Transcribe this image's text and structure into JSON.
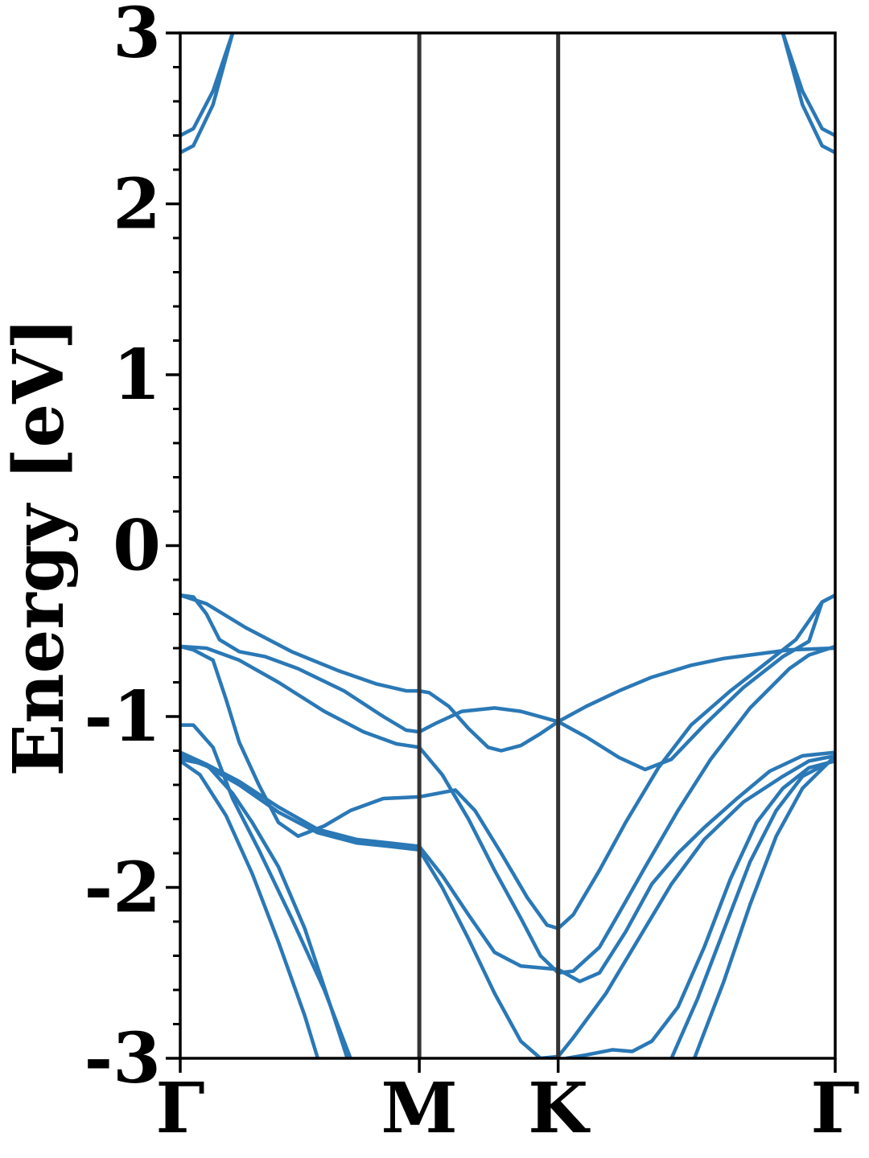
{
  "chart_data": {
    "type": "line",
    "title": "",
    "xlabel": "",
    "ylabel": "Energy [eV]",
    "ylim": [
      -3,
      3
    ],
    "xlim": [
      0,
      1
    ],
    "yticks": [
      "-3",
      "-2",
      "-1",
      "0",
      "1",
      "2",
      "3"
    ],
    "ytick_values": [
      -3,
      -2,
      -1,
      0,
      1,
      2,
      3
    ],
    "minor_ytick_step": 0.2,
    "kpoints": [
      {
        "label": "Γ",
        "x": 0.0
      },
      {
        "label": "M",
        "x": 0.365
      },
      {
        "label": "K",
        "x": 0.577
      },
      {
        "label": "Γ",
        "x": 1.0
      }
    ],
    "grid": false,
    "legend": "none",
    "line_color": "#2a78b6",
    "divider_color": "#333333",
    "series": [
      {
        "values": [
          [
            0.0,
            2.3
          ],
          [
            0.02,
            2.34
          ],
          [
            0.05,
            2.58
          ],
          [
            0.08,
            3.0
          ]
        ]
      },
      {
        "values": [
          [
            0.0,
            2.4
          ],
          [
            0.02,
            2.44
          ],
          [
            0.05,
            2.66
          ],
          [
            0.08,
            3.0
          ]
        ]
      },
      {
        "values": [
          [
            0.92,
            3.0
          ],
          [
            0.95,
            2.58
          ],
          [
            0.98,
            2.34
          ],
          [
            1.0,
            2.3
          ]
        ]
      },
      {
        "values": [
          [
            0.92,
            3.0
          ],
          [
            0.95,
            2.66
          ],
          [
            0.98,
            2.44
          ],
          [
            1.0,
            2.4
          ]
        ]
      },
      {
        "values": [
          [
            0.0,
            -0.29
          ],
          [
            0.04,
            -0.34
          ],
          [
            0.1,
            -0.48
          ],
          [
            0.17,
            -0.62
          ],
          [
            0.24,
            -0.73
          ],
          [
            0.3,
            -0.81
          ],
          [
            0.345,
            -0.85
          ],
          [
            0.365,
            -0.85
          ],
          [
            0.38,
            -0.86
          ],
          [
            0.41,
            -0.94
          ],
          [
            0.44,
            -1.07
          ],
          [
            0.47,
            -1.18
          ],
          [
            0.49,
            -1.2
          ],
          [
            0.52,
            -1.17
          ],
          [
            0.55,
            -1.1
          ],
          [
            0.577,
            -1.03
          ],
          [
            0.62,
            -0.94
          ],
          [
            0.67,
            -0.85
          ],
          [
            0.72,
            -0.77
          ],
          [
            0.78,
            -0.7
          ],
          [
            0.83,
            -0.66
          ],
          [
            0.87,
            -0.64
          ],
          [
            0.93,
            -0.61
          ],
          [
            1.0,
            -0.6
          ]
        ]
      },
      {
        "values": [
          [
            0.0,
            -0.29
          ],
          [
            0.02,
            -0.3
          ],
          [
            0.04,
            -0.4
          ],
          [
            0.06,
            -0.55
          ],
          [
            0.09,
            -0.62
          ],
          [
            0.13,
            -0.65
          ],
          [
            0.18,
            -0.72
          ],
          [
            0.25,
            -0.85
          ],
          [
            0.31,
            -1.0
          ],
          [
            0.345,
            -1.08
          ],
          [
            0.365,
            -1.09
          ],
          [
            0.39,
            -1.04
          ],
          [
            0.43,
            -0.97
          ],
          [
            0.48,
            -0.95
          ],
          [
            0.52,
            -0.97
          ],
          [
            0.577,
            -1.03
          ],
          [
            0.62,
            -1.12
          ],
          [
            0.67,
            -1.24
          ],
          [
            0.71,
            -1.31
          ],
          [
            0.75,
            -1.25
          ],
          [
            0.8,
            -1.05
          ],
          [
            0.86,
            -0.83
          ],
          [
            0.92,
            -0.65
          ],
          [
            0.96,
            -0.56
          ],
          [
            0.98,
            -0.33
          ],
          [
            1.0,
            -0.29
          ]
        ]
      },
      {
        "values": [
          [
            0.0,
            -0.59
          ],
          [
            0.04,
            -0.6
          ],
          [
            0.09,
            -0.67
          ],
          [
            0.15,
            -0.8
          ],
          [
            0.22,
            -0.97
          ],
          [
            0.28,
            -1.09
          ],
          [
            0.33,
            -1.16
          ],
          [
            0.365,
            -1.18
          ],
          [
            0.4,
            -1.34
          ],
          [
            0.44,
            -1.6
          ],
          [
            0.48,
            -1.9
          ],
          [
            0.52,
            -2.18
          ],
          [
            0.55,
            -2.4
          ],
          [
            0.577,
            -2.5
          ],
          [
            0.6,
            -2.49
          ],
          [
            0.64,
            -2.35
          ],
          [
            0.67,
            -2.15
          ],
          [
            0.71,
            -1.88
          ],
          [
            0.76,
            -1.55
          ],
          [
            0.81,
            -1.25
          ],
          [
            0.87,
            -0.95
          ],
          [
            0.93,
            -0.72
          ],
          [
            0.96,
            -0.64
          ],
          [
            1.0,
            -0.59
          ]
        ]
      },
      {
        "values": [
          [
            0.0,
            -0.59
          ],
          [
            0.02,
            -0.61
          ],
          [
            0.05,
            -0.67
          ],
          [
            0.07,
            -0.9
          ],
          [
            0.09,
            -1.15
          ],
          [
            0.12,
            -1.4
          ],
          [
            0.15,
            -1.62
          ],
          [
            0.18,
            -1.7
          ],
          [
            0.22,
            -1.64
          ],
          [
            0.26,
            -1.55
          ],
          [
            0.31,
            -1.48
          ],
          [
            0.365,
            -1.47
          ],
          [
            0.42,
            -1.43
          ],
          [
            0.45,
            -1.55
          ],
          [
            0.49,
            -1.8
          ],
          [
            0.53,
            -2.06
          ],
          [
            0.56,
            -2.22
          ],
          [
            0.577,
            -2.24
          ],
          [
            0.6,
            -2.16
          ],
          [
            0.64,
            -1.9
          ],
          [
            0.68,
            -1.62
          ],
          [
            0.73,
            -1.3
          ],
          [
            0.78,
            -1.05
          ],
          [
            0.84,
            -0.85
          ],
          [
            0.89,
            -0.7
          ],
          [
            0.94,
            -0.55
          ],
          [
            0.98,
            -0.33
          ],
          [
            1.0,
            -0.29
          ]
        ]
      },
      {
        "values": [
          [
            0.0,
            -1.05
          ],
          [
            0.02,
            -1.05
          ],
          [
            0.05,
            -1.18
          ],
          [
            0.08,
            -1.48
          ],
          [
            0.12,
            -1.78
          ],
          [
            0.17,
            -2.18
          ],
          [
            0.22,
            -2.6
          ],
          [
            0.26,
            -3.0
          ]
        ]
      },
      {
        "values": [
          [
            0.0,
            -1.21
          ],
          [
            0.04,
            -1.28
          ],
          [
            0.09,
            -1.38
          ],
          [
            0.15,
            -1.53
          ],
          [
            0.21,
            -1.66
          ],
          [
            0.27,
            -1.72
          ],
          [
            0.32,
            -1.74
          ],
          [
            0.365,
            -1.76
          ],
          [
            0.4,
            -1.93
          ],
          [
            0.44,
            -2.16
          ],
          [
            0.48,
            -2.38
          ],
          [
            0.52,
            -2.46
          ],
          [
            0.577,
            -2.48
          ],
          [
            0.61,
            -2.55
          ],
          [
            0.64,
            -2.5
          ],
          [
            0.68,
            -2.26
          ],
          [
            0.72,
            -1.98
          ],
          [
            0.76,
            -1.8
          ],
          [
            0.8,
            -1.65
          ],
          [
            0.85,
            -1.48
          ],
          [
            0.9,
            -1.32
          ],
          [
            0.95,
            -1.23
          ],
          [
            1.0,
            -1.21
          ]
        ]
      },
      {
        "values": [
          [
            0.0,
            -1.23
          ],
          [
            0.04,
            -1.29
          ],
          [
            0.09,
            -1.4
          ],
          [
            0.15,
            -1.56
          ],
          [
            0.21,
            -1.68
          ],
          [
            0.27,
            -1.74
          ],
          [
            0.32,
            -1.76
          ],
          [
            0.365,
            -1.78
          ],
          [
            0.4,
            -2.0
          ],
          [
            0.44,
            -2.3
          ],
          [
            0.48,
            -2.62
          ],
          [
            0.52,
            -2.9
          ],
          [
            0.55,
            -3.0
          ],
          [
            0.577,
            -2.99
          ],
          [
            0.6,
            -2.88
          ],
          [
            0.65,
            -2.62
          ],
          [
            0.7,
            -2.3
          ],
          [
            0.75,
            -1.98
          ],
          [
            0.8,
            -1.72
          ],
          [
            0.86,
            -1.5
          ],
          [
            0.92,
            -1.35
          ],
          [
            0.96,
            -1.26
          ],
          [
            1.0,
            -1.23
          ]
        ]
      },
      {
        "values": [
          [
            0.0,
            -1.25
          ],
          [
            0.04,
            -1.28
          ],
          [
            0.08,
            -1.45
          ],
          [
            0.11,
            -1.62
          ],
          [
            0.15,
            -1.88
          ],
          [
            0.19,
            -2.24
          ],
          [
            0.23,
            -2.7
          ],
          [
            0.255,
            -3.0
          ]
        ]
      },
      {
        "values": [
          [
            0.0,
            -1.26
          ],
          [
            0.03,
            -1.34
          ],
          [
            0.07,
            -1.58
          ],
          [
            0.11,
            -1.92
          ],
          [
            0.15,
            -2.32
          ],
          [
            0.19,
            -2.75
          ],
          [
            0.21,
            -3.0
          ]
        ]
      },
      {
        "values": [
          [
            0.59,
            -3.0
          ],
          [
            0.62,
            -2.98
          ],
          [
            0.66,
            -2.95
          ],
          [
            0.69,
            -2.96
          ],
          [
            0.72,
            -2.9
          ],
          [
            0.76,
            -2.7
          ],
          [
            0.8,
            -2.35
          ],
          [
            0.84,
            -1.95
          ],
          [
            0.88,
            -1.62
          ],
          [
            0.92,
            -1.42
          ],
          [
            0.96,
            -1.3
          ],
          [
            1.0,
            -1.26
          ]
        ]
      },
      {
        "values": [
          [
            0.75,
            -3.0
          ],
          [
            0.79,
            -2.65
          ],
          [
            0.83,
            -2.25
          ],
          [
            0.87,
            -1.85
          ],
          [
            0.91,
            -1.55
          ],
          [
            0.95,
            -1.35
          ],
          [
            1.0,
            -1.25
          ]
        ]
      },
      {
        "values": [
          [
            0.785,
            -3.0
          ],
          [
            0.83,
            -2.55
          ],
          [
            0.87,
            -2.1
          ],
          [
            0.91,
            -1.7
          ],
          [
            0.95,
            -1.42
          ],
          [
            1.0,
            -1.23
          ]
        ]
      }
    ]
  }
}
